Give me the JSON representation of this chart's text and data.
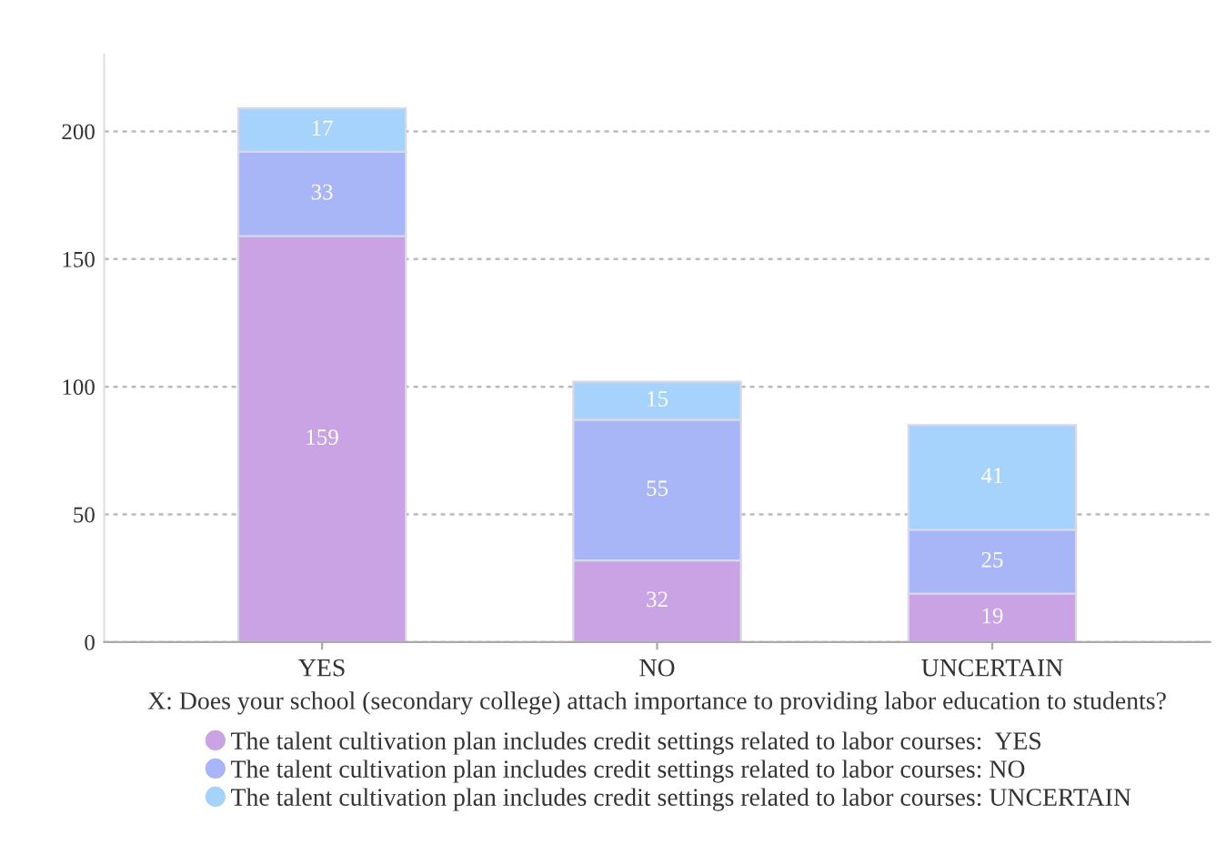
{
  "chart_data": {
    "type": "bar",
    "stacked": true,
    "xlabel": "X: Does your school (secondary college) attach importance to providing labor education to students?",
    "categories": [
      "YES",
      "NO",
      "UNCERTAIN"
    ],
    "series": [
      {
        "name": "The talent cultivation plan includes credit settings related to labor courses:  YES",
        "color": "#c9a3e3",
        "values": [
          159,
          32,
          19
        ]
      },
      {
        "name": "The talent cultivation plan includes credit settings related to labor courses: NO",
        "color": "#a8b6f8",
        "values": [
          33,
          55,
          25
        ]
      },
      {
        "name": "The talent cultivation plan includes credit settings related to labor courses: UNCERTAIN",
        "color": "#a6d3fb",
        "values": [
          17,
          15,
          41
        ]
      }
    ],
    "ylim": [
      0,
      230
    ],
    "yticks": [
      0,
      50,
      100,
      150,
      200
    ],
    "grid": "y",
    "legend": "bottom",
    "data_labels": true
  }
}
